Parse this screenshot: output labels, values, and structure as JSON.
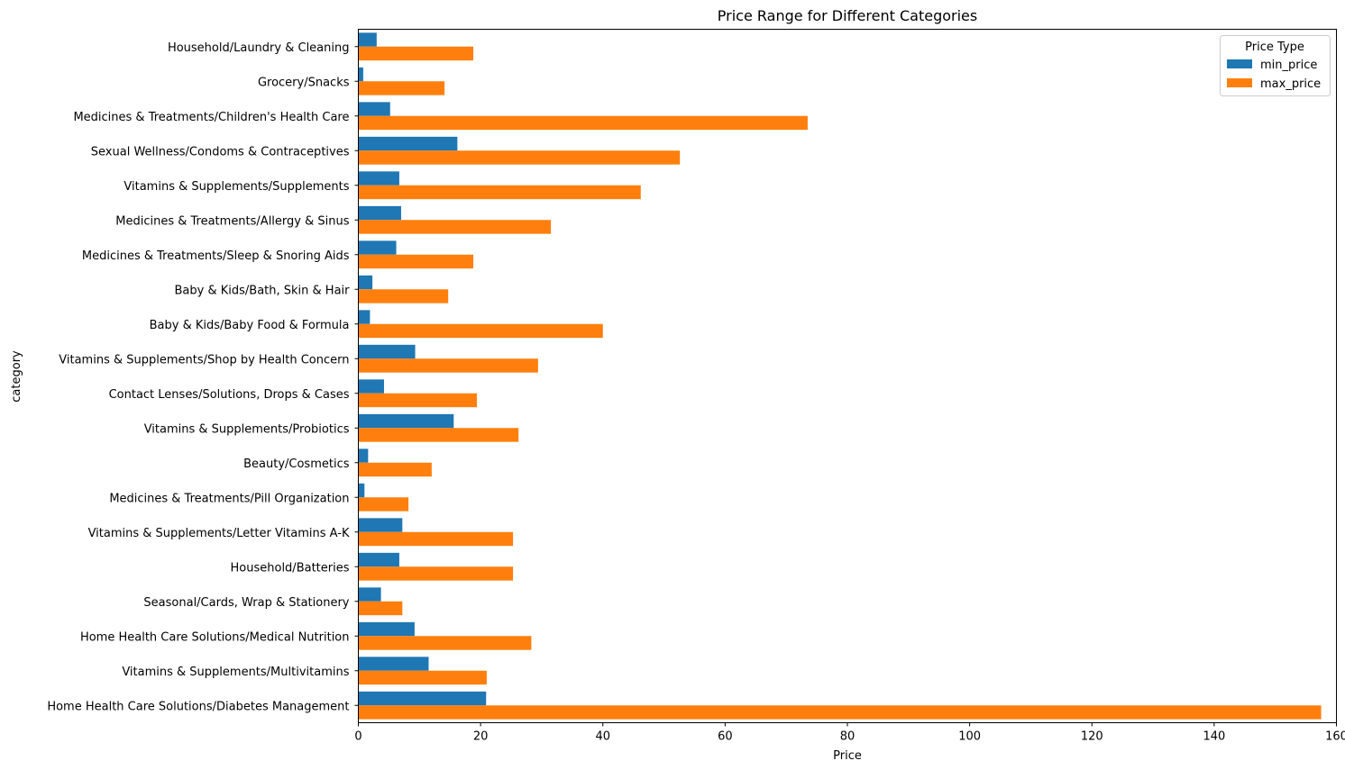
{
  "chart_data": {
    "type": "bar",
    "orientation": "horizontal",
    "title": "Price Range for Different Categories",
    "xlabel": "Price",
    "ylabel": "category",
    "xlim": [
      0,
      160
    ],
    "xticks": [
      0,
      20,
      40,
      60,
      80,
      100,
      120,
      140,
      160
    ],
    "grid": false,
    "legend": {
      "title": "Price Type",
      "position": "top-right"
    },
    "categories": [
      "Household/Laundry & Cleaning",
      "Grocery/Snacks",
      "Medicines & Treatments/Children's Health Care",
      "Sexual Wellness/Condoms & Contraceptives",
      "Vitamins & Supplements/Supplements",
      "Medicines & Treatments/Allergy & Sinus",
      "Medicines & Treatments/Sleep & Snoring Aids",
      "Baby & Kids/Bath, Skin & Hair",
      "Baby & Kids/Baby Food & Formula",
      "Vitamins & Supplements/Shop by Health Concern",
      "Contact Lenses/Solutions, Drops & Cases",
      "Vitamins & Supplements/Probiotics",
      "Beauty/Cosmetics",
      "Medicines & Treatments/Pill Organization",
      "Vitamins & Supplements/Letter Vitamins A-K",
      "Household/Batteries",
      "Seasonal/Cards, Wrap & Stationery",
      "Home Health Care Solutions/Medical Nutrition",
      "Vitamins & Supplements/Multivitamins",
      "Home Health Care Solutions/Diabetes Management"
    ],
    "series": [
      {
        "name": "min_price",
        "color": "#1f77b4",
        "values": [
          3.0,
          0.8,
          5.2,
          16.2,
          6.7,
          7.0,
          6.2,
          2.3,
          1.9,
          9.3,
          4.2,
          15.6,
          1.6,
          1.0,
          7.2,
          6.7,
          3.7,
          9.2,
          11.5,
          20.9
        ]
      },
      {
        "name": "max_price",
        "color": "#ff7f0e",
        "values": [
          18.8,
          14.1,
          73.5,
          52.6,
          46.2,
          31.5,
          18.8,
          14.7,
          40.0,
          29.4,
          19.4,
          26.2,
          12.0,
          8.2,
          25.3,
          25.3,
          7.2,
          28.3,
          21.0,
          157.5
        ]
      }
    ]
  }
}
